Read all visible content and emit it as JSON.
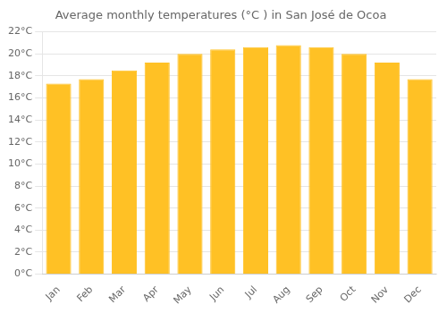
{
  "chart_data": {
    "type": "bar",
    "title": "Average monthly temperatures (°C ) in San José de Ocoa",
    "categories": [
      "Jan",
      "Feb",
      "Mar",
      "Apr",
      "May",
      "Jun",
      "Jul",
      "Aug",
      "Sep",
      "Oct",
      "Nov",
      "Dec"
    ],
    "values": [
      17.3,
      17.7,
      18.5,
      19.2,
      20.0,
      20.4,
      20.6,
      20.8,
      20.6,
      20.0,
      19.2,
      17.7
    ],
    "color": "#FFC125",
    "ylim": [
      0,
      22
    ],
    "yticks": [
      {
        "value": 0,
        "label": "0°C"
      },
      {
        "value": 2,
        "label": "2°C"
      },
      {
        "value": 4,
        "label": "4°C"
      },
      {
        "value": 6,
        "label": "6°C"
      },
      {
        "value": 8,
        "label": "8°C"
      },
      {
        "value": 10,
        "label": "10°C"
      },
      {
        "value": 12,
        "label": "12°C"
      },
      {
        "value": 14,
        "label": "14°C"
      },
      {
        "value": 16,
        "label": "16°C"
      },
      {
        "value": 18,
        "label": "18°C"
      },
      {
        "value": 20,
        "label": "20°C"
      },
      {
        "value": 22,
        "label": "22°C"
      }
    ],
    "grid": true
  }
}
